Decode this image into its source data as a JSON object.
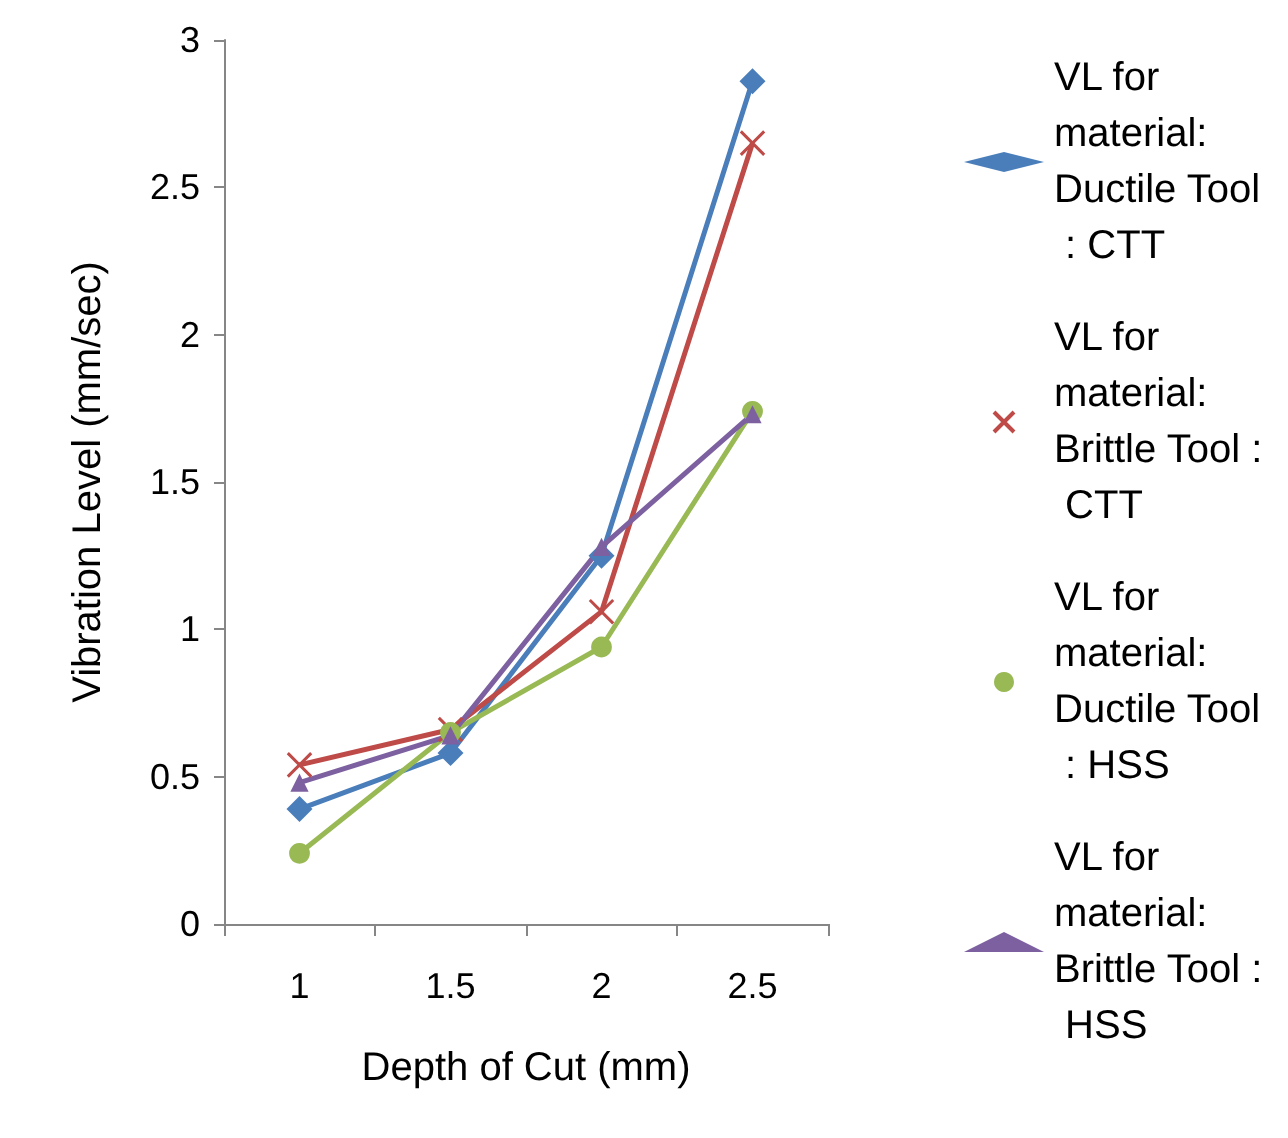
{
  "chart_data": {
    "type": "line",
    "xlabel": "Depth of Cut (mm)",
    "ylabel": "Vibration Level (mm/sec)",
    "categories": [
      "1",
      "1.5",
      "2",
      "2.5"
    ],
    "series": [
      {
        "name": "VL for material: Ductile Tool : CTT",
        "color": "#4a7ebb",
        "marker": "diamond",
        "values": [
          0.39,
          0.58,
          1.25,
          2.86
        ]
      },
      {
        "name": "VL for material: Brittle Tool : CTT",
        "color": "#be4b48",
        "marker": "cross",
        "values": [
          0.54,
          0.66,
          1.06,
          2.65
        ]
      },
      {
        "name": "VL for material: Ductile Tool : HSS",
        "color": "#98b954",
        "marker": "circle",
        "values": [
          0.24,
          0.65,
          0.94,
          1.74
        ]
      },
      {
        "name": "VL for material: Brittle Tool : HSS",
        "color": "#7d60a0",
        "marker": "triangle",
        "values": [
          0.48,
          0.64,
          1.28,
          1.73
        ]
      }
    ],
    "ylim": [
      0,
      3
    ],
    "yticks": [
      0,
      0.5,
      1,
      1.5,
      2,
      2.5,
      3
    ],
    "grid": false,
    "legend": "right"
  }
}
